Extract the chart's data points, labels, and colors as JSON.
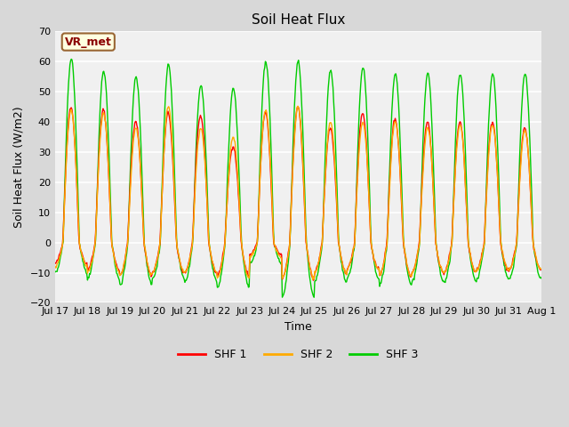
{
  "title": "Soil Heat Flux",
  "ylabel": "Soil Heat Flux (W/m2)",
  "xlabel": "Time",
  "ylim": [
    -20,
    70
  ],
  "yticks": [
    -20,
    -10,
    0,
    10,
    20,
    30,
    40,
    50,
    60,
    70
  ],
  "n_days": 15,
  "colors": {
    "SHF 1": "#ff0000",
    "SHF 2": "#ffaa00",
    "SHF 3": "#00cc00"
  },
  "legend_label": "VR_met",
  "fig_bg_color": "#d8d8d8",
  "plot_bg": "#f0f0f0",
  "xtick_labels": [
    "Jul 17",
    "Jul 18",
    "Jul 19",
    "Jul 20",
    "Jul 21",
    "Jul 22",
    "Jul 23",
    "Jul 24",
    "Jul 25",
    "Jul 26",
    "Jul 27",
    "Jul 28",
    "Jul 29",
    "Jul 30",
    "Jul 31",
    "Aug 1"
  ],
  "daily_peaks_shf3": [
    61,
    57,
    55,
    59,
    52,
    51,
    60,
    60,
    57,
    58,
    56,
    56,
    56,
    56,
    56
  ],
  "daily_peaks_shf1": [
    45,
    44,
    40,
    43,
    42,
    32,
    43,
    45,
    38,
    43,
    41,
    40,
    40,
    40,
    38
  ],
  "daily_peaks_shf2": [
    44,
    43,
    38,
    45,
    38,
    35,
    44,
    45,
    40,
    40,
    40,
    38,
    39,
    39,
    37
  ],
  "daily_troughs_shf3": [
    -10,
    -12,
    -14,
    -12,
    -13,
    -15,
    -7,
    -18,
    -13,
    -12,
    -14,
    -13,
    -13,
    -12,
    -12
  ],
  "daily_troughs_shf1": [
    -7,
    -9,
    -11,
    -10,
    -10,
    -11,
    -4,
    -12,
    -10,
    -9,
    -11,
    -10,
    -10,
    -9,
    -9
  ],
  "daily_troughs_shf2": [
    -8,
    -10,
    -11,
    -10,
    -10,
    -12,
    -5,
    -12,
    -10,
    -9,
    -11,
    -10,
    -10,
    -9,
    -9
  ]
}
